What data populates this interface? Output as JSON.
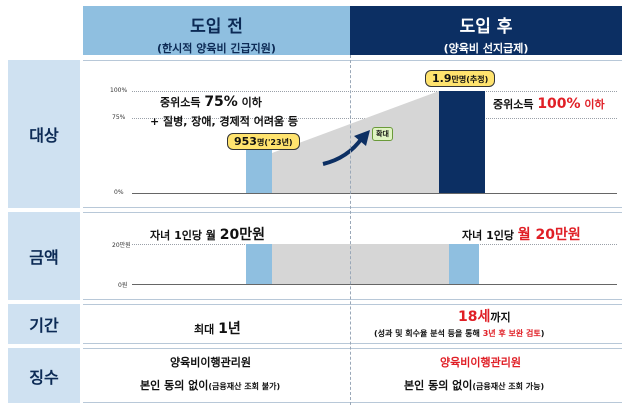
{
  "header": {
    "before_title": "도입 전",
    "before_sub": "(한시적 양육비 긴급지원)",
    "after_title": "도입 후",
    "after_sub": "(양육비 선지급제)"
  },
  "rows": {
    "target": "대상",
    "amount": "금액",
    "period": "기간",
    "collection": "징수"
  },
  "target": {
    "axis_100": "100%",
    "axis_75": "75%",
    "axis_0": "0%",
    "before_income_pre": "중위소득 ",
    "before_income_pct": "75%",
    "before_income_post": " 이하",
    "before_extra": "+ 질병, 장애, 경제적 어려움 등",
    "before_badge_num": "953",
    "before_badge_unit": "명('23년)",
    "expand": "확대",
    "after_badge_num": "1.9",
    "after_badge_unit": "만명(추정)",
    "after_income_pre": "중위소득 ",
    "after_income_pct": "100%",
    "after_income_post": " 이하",
    "before_bar_level": 0.45,
    "after_bar_level": 1.0
  },
  "amount": {
    "axis_20": "20만원",
    "axis_0": "0원",
    "before_pre": "자녀 1인당 월 ",
    "before_val": "20만원",
    "after_pre": "자녀 1인당 ",
    "after_val": "월 20만원"
  },
  "period": {
    "before_pre": "최대 ",
    "before_val": "1년",
    "after_val": "18세",
    "after_post": "까지",
    "after_note_pre": "(성과 및 회수율 분석 등을 통해 ",
    "after_note_red": "3년 후 보완 검토",
    "after_note_post": ")"
  },
  "collection": {
    "before_agency": "양육비이행관리원",
    "before_consent": "본인 동의 없이",
    "before_consent_note": "(금융재산 조회 불가)",
    "after_agency": "양육비이행관리원",
    "after_consent": "본인 동의 없이",
    "after_consent_note_pre": "(금융재산 ",
    "after_consent_note_red": "조회 가능",
    "after_consent_note_post": ")"
  }
}
